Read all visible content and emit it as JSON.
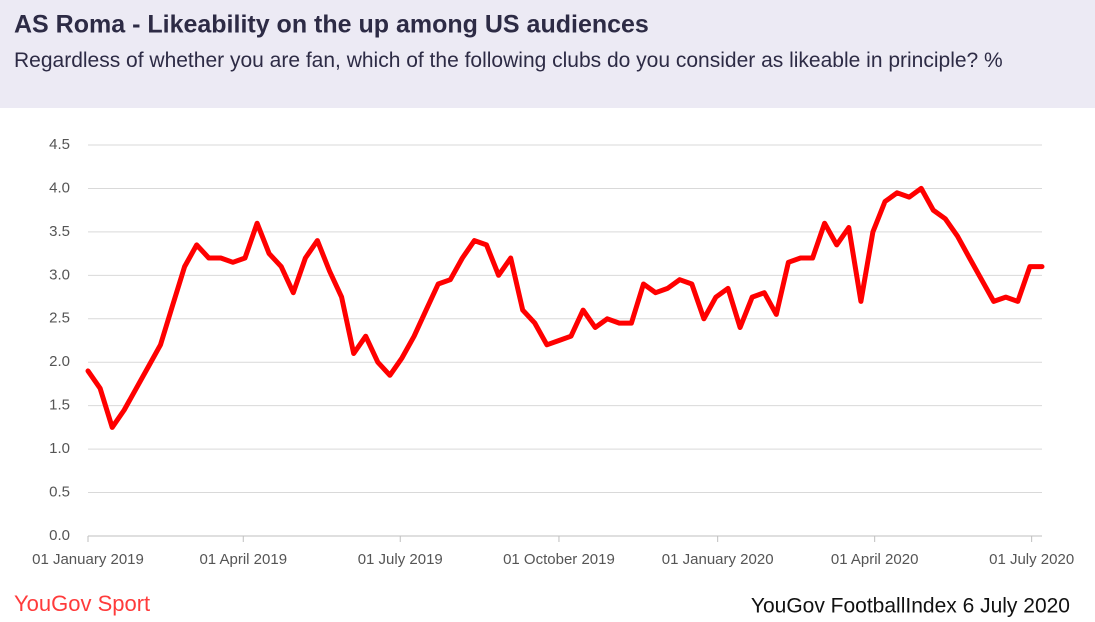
{
  "chart_data": {
    "type": "line",
    "title": "AS Roma - Likeability on the up among US audiences",
    "subtitle": "Regardless of whether you are fan, which of the following clubs do you consider as likeable in principle? %",
    "logo": "YouGov Sport",
    "source": "YouGov FootballIndex 6 July 2020",
    "x": [
      "2019-01-01",
      "2019-01-08",
      "2019-01-15",
      "2019-01-22",
      "2019-01-29",
      "2019-02-05",
      "2019-02-12",
      "2019-02-19",
      "2019-02-26",
      "2019-03-05",
      "2019-03-12",
      "2019-03-19",
      "2019-03-26",
      "2019-04-02",
      "2019-04-09",
      "2019-04-16",
      "2019-04-23",
      "2019-04-30",
      "2019-05-07",
      "2019-05-14",
      "2019-05-21",
      "2019-05-28",
      "2019-06-04",
      "2019-06-11",
      "2019-06-18",
      "2019-06-25",
      "2019-07-02",
      "2019-07-09",
      "2019-07-16",
      "2019-07-23",
      "2019-07-30",
      "2019-08-06",
      "2019-08-13",
      "2019-08-20",
      "2019-08-27",
      "2019-09-03",
      "2019-09-10",
      "2019-09-17",
      "2019-09-24",
      "2019-10-01",
      "2019-10-08",
      "2019-10-15",
      "2019-10-22",
      "2019-10-29",
      "2019-11-05",
      "2019-11-12",
      "2019-11-19",
      "2019-11-26",
      "2019-12-03",
      "2019-12-10",
      "2019-12-17",
      "2019-12-24",
      "2019-12-31",
      "2020-01-07",
      "2020-01-14",
      "2020-01-21",
      "2020-01-28",
      "2020-02-04",
      "2020-02-11",
      "2020-02-18",
      "2020-02-25",
      "2020-03-03",
      "2020-03-10",
      "2020-03-17",
      "2020-03-24",
      "2020-03-31",
      "2020-04-07",
      "2020-04-14",
      "2020-04-21",
      "2020-04-28",
      "2020-05-05",
      "2020-05-12",
      "2020-05-19",
      "2020-05-26",
      "2020-06-02",
      "2020-06-09",
      "2020-06-16",
      "2020-06-23",
      "2020-06-30",
      "2020-07-07"
    ],
    "series": [
      {
        "name": "AS Roma",
        "color": "#ff0000",
        "values": [
          1.9,
          1.7,
          1.25,
          1.45,
          1.7,
          1.95,
          2.2,
          2.65,
          3.1,
          3.35,
          3.2,
          3.2,
          3.15,
          3.2,
          3.6,
          3.25,
          3.1,
          2.8,
          3.2,
          3.4,
          3.05,
          2.75,
          2.1,
          2.3,
          2.0,
          1.85,
          2.05,
          2.3,
          2.6,
          2.9,
          2.95,
          3.2,
          3.4,
          3.35,
          3.0,
          3.2,
          2.6,
          2.45,
          2.2,
          2.25,
          2.3,
          2.6,
          2.4,
          2.5,
          2.45,
          2.45,
          2.9,
          2.8,
          2.85,
          2.95,
          2.9,
          2.5,
          2.75,
          2.85,
          2.4,
          2.75,
          2.8,
          2.55,
          3.15,
          3.2,
          3.2,
          3.6,
          3.35,
          3.55,
          2.7,
          3.5,
          3.85,
          3.95,
          3.9,
          4.0,
          3.75,
          3.65,
          3.45,
          3.2,
          2.95,
          2.7,
          2.75,
          2.7,
          3.1,
          3.1
        ]
      }
    ],
    "xlim": [
      "2019-01-01",
      "2020-07-07"
    ],
    "xticks": [
      {
        "value": "2019-01-01",
        "label": "01 January 2019"
      },
      {
        "value": "2019-04-01",
        "label": "01 April 2019"
      },
      {
        "value": "2019-07-01",
        "label": "01 July 2019"
      },
      {
        "value": "2019-10-01",
        "label": "01 October 2019"
      },
      {
        "value": "2020-01-01",
        "label": "01 January 2020"
      },
      {
        "value": "2020-04-01",
        "label": "01 April 2020"
      },
      {
        "value": "2020-07-01",
        "label": "01 July 2020"
      }
    ],
    "ylim": [
      0,
      4.5
    ],
    "yticks": [
      {
        "value": 0,
        "label": "0.0"
      },
      0.5,
      {
        "value": 1,
        "label": "1.0"
      },
      1.5,
      {
        "value": 2,
        "label": "2.0"
      },
      2.5,
      {
        "value": 3,
        "label": "3.0"
      },
      3.5,
      {
        "value": 4,
        "label": "4.0"
      },
      4.5
    ],
    "grid": true
  }
}
